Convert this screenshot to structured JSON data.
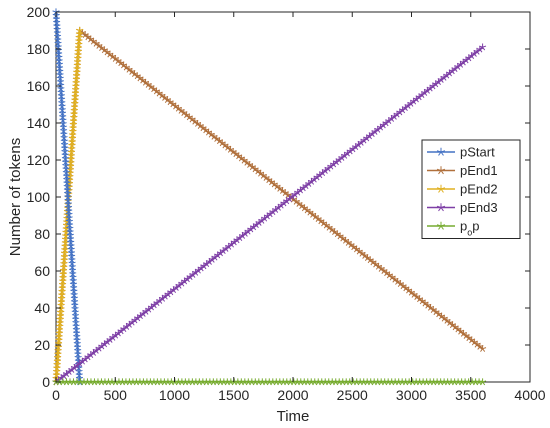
{
  "chart_data": {
    "type": "line",
    "title": "",
    "xlabel": "Time",
    "ylabel": "Number of tokens",
    "xlim": [
      0,
      4000
    ],
    "ylim": [
      0,
      200
    ],
    "xticks": [
      0,
      500,
      1000,
      1500,
      2000,
      2500,
      3000,
      3500,
      4000
    ],
    "yticks": [
      0,
      20,
      40,
      60,
      80,
      100,
      120,
      140,
      160,
      180,
      200
    ],
    "grid": false,
    "legend_position": "right",
    "series": [
      {
        "name": "pStart",
        "color": "#4472c4",
        "marker": "star",
        "x": [
          0,
          200
        ],
        "y": [
          200,
          0
        ]
      },
      {
        "name": "pEnd1",
        "color": "#b0703c",
        "marker": "star",
        "x": [
          0,
          200,
          3600
        ],
        "y": [
          0,
          190,
          18
        ]
      },
      {
        "name": "pEnd2",
        "color": "#e0b020",
        "marker": "star",
        "x": [
          0,
          200
        ],
        "y": [
          0,
          190
        ]
      },
      {
        "name": "pEnd3",
        "color": "#7e3fa6",
        "marker": "star",
        "x": [
          0,
          200,
          3600
        ],
        "y": [
          0,
          10,
          181
        ]
      },
      {
        "name": "p_op",
        "label_main": "p",
        "label_sub": "o",
        "label_end": "p",
        "color": "#77ac30",
        "marker": "star",
        "x": [
          0,
          3600
        ],
        "y": [
          0,
          0
        ]
      }
    ]
  }
}
